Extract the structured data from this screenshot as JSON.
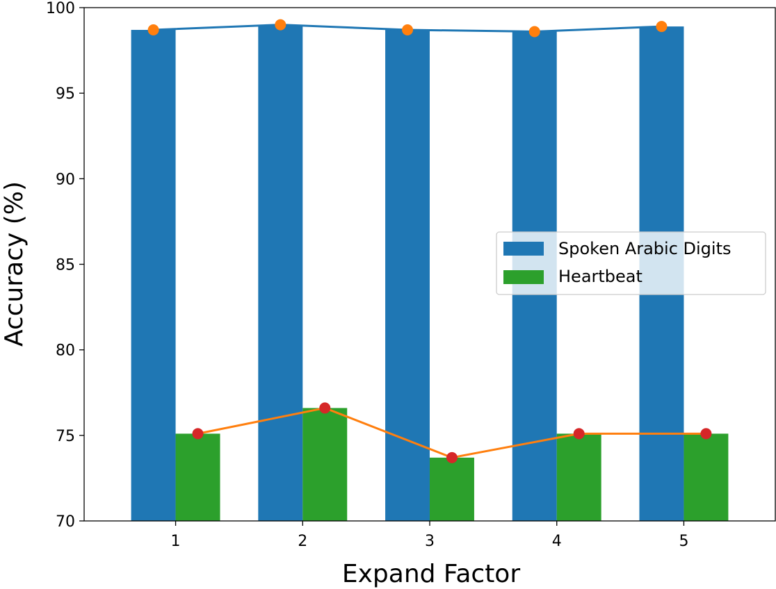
{
  "chart_data": {
    "type": "bar",
    "xlabel": "Expand Factor",
    "ylabel": "Accuracy (%)",
    "categories": [
      "1",
      "2",
      "3",
      "4",
      "5"
    ],
    "ylim": [
      70,
      100
    ],
    "yticks": [
      70,
      75,
      80,
      85,
      90,
      95,
      100
    ],
    "grid": false,
    "legend_placement": "center-right",
    "series": [
      {
        "name": "Spoken Arabic Digits",
        "kind": "bar",
        "color": "#1f77b4",
        "values": [
          98.7,
          99.0,
          98.7,
          98.6,
          98.9
        ]
      },
      {
        "name": "Heartbeat",
        "kind": "bar",
        "color": "#2ca02c",
        "values": [
          75.1,
          76.6,
          73.7,
          75.1,
          75.1
        ]
      }
    ],
    "overlays": [
      {
        "for_series": "Spoken Arabic Digits",
        "kind": "line",
        "line_color": "#1f77b4",
        "marker_color": "#ff7f0e",
        "values": [
          98.7,
          99.0,
          98.7,
          98.6,
          98.9
        ]
      },
      {
        "for_series": "Heartbeat",
        "kind": "line",
        "line_color": "#ff7f0e",
        "marker_color": "#d62728",
        "values": [
          75.1,
          76.6,
          73.7,
          75.1,
          75.1
        ]
      }
    ]
  }
}
